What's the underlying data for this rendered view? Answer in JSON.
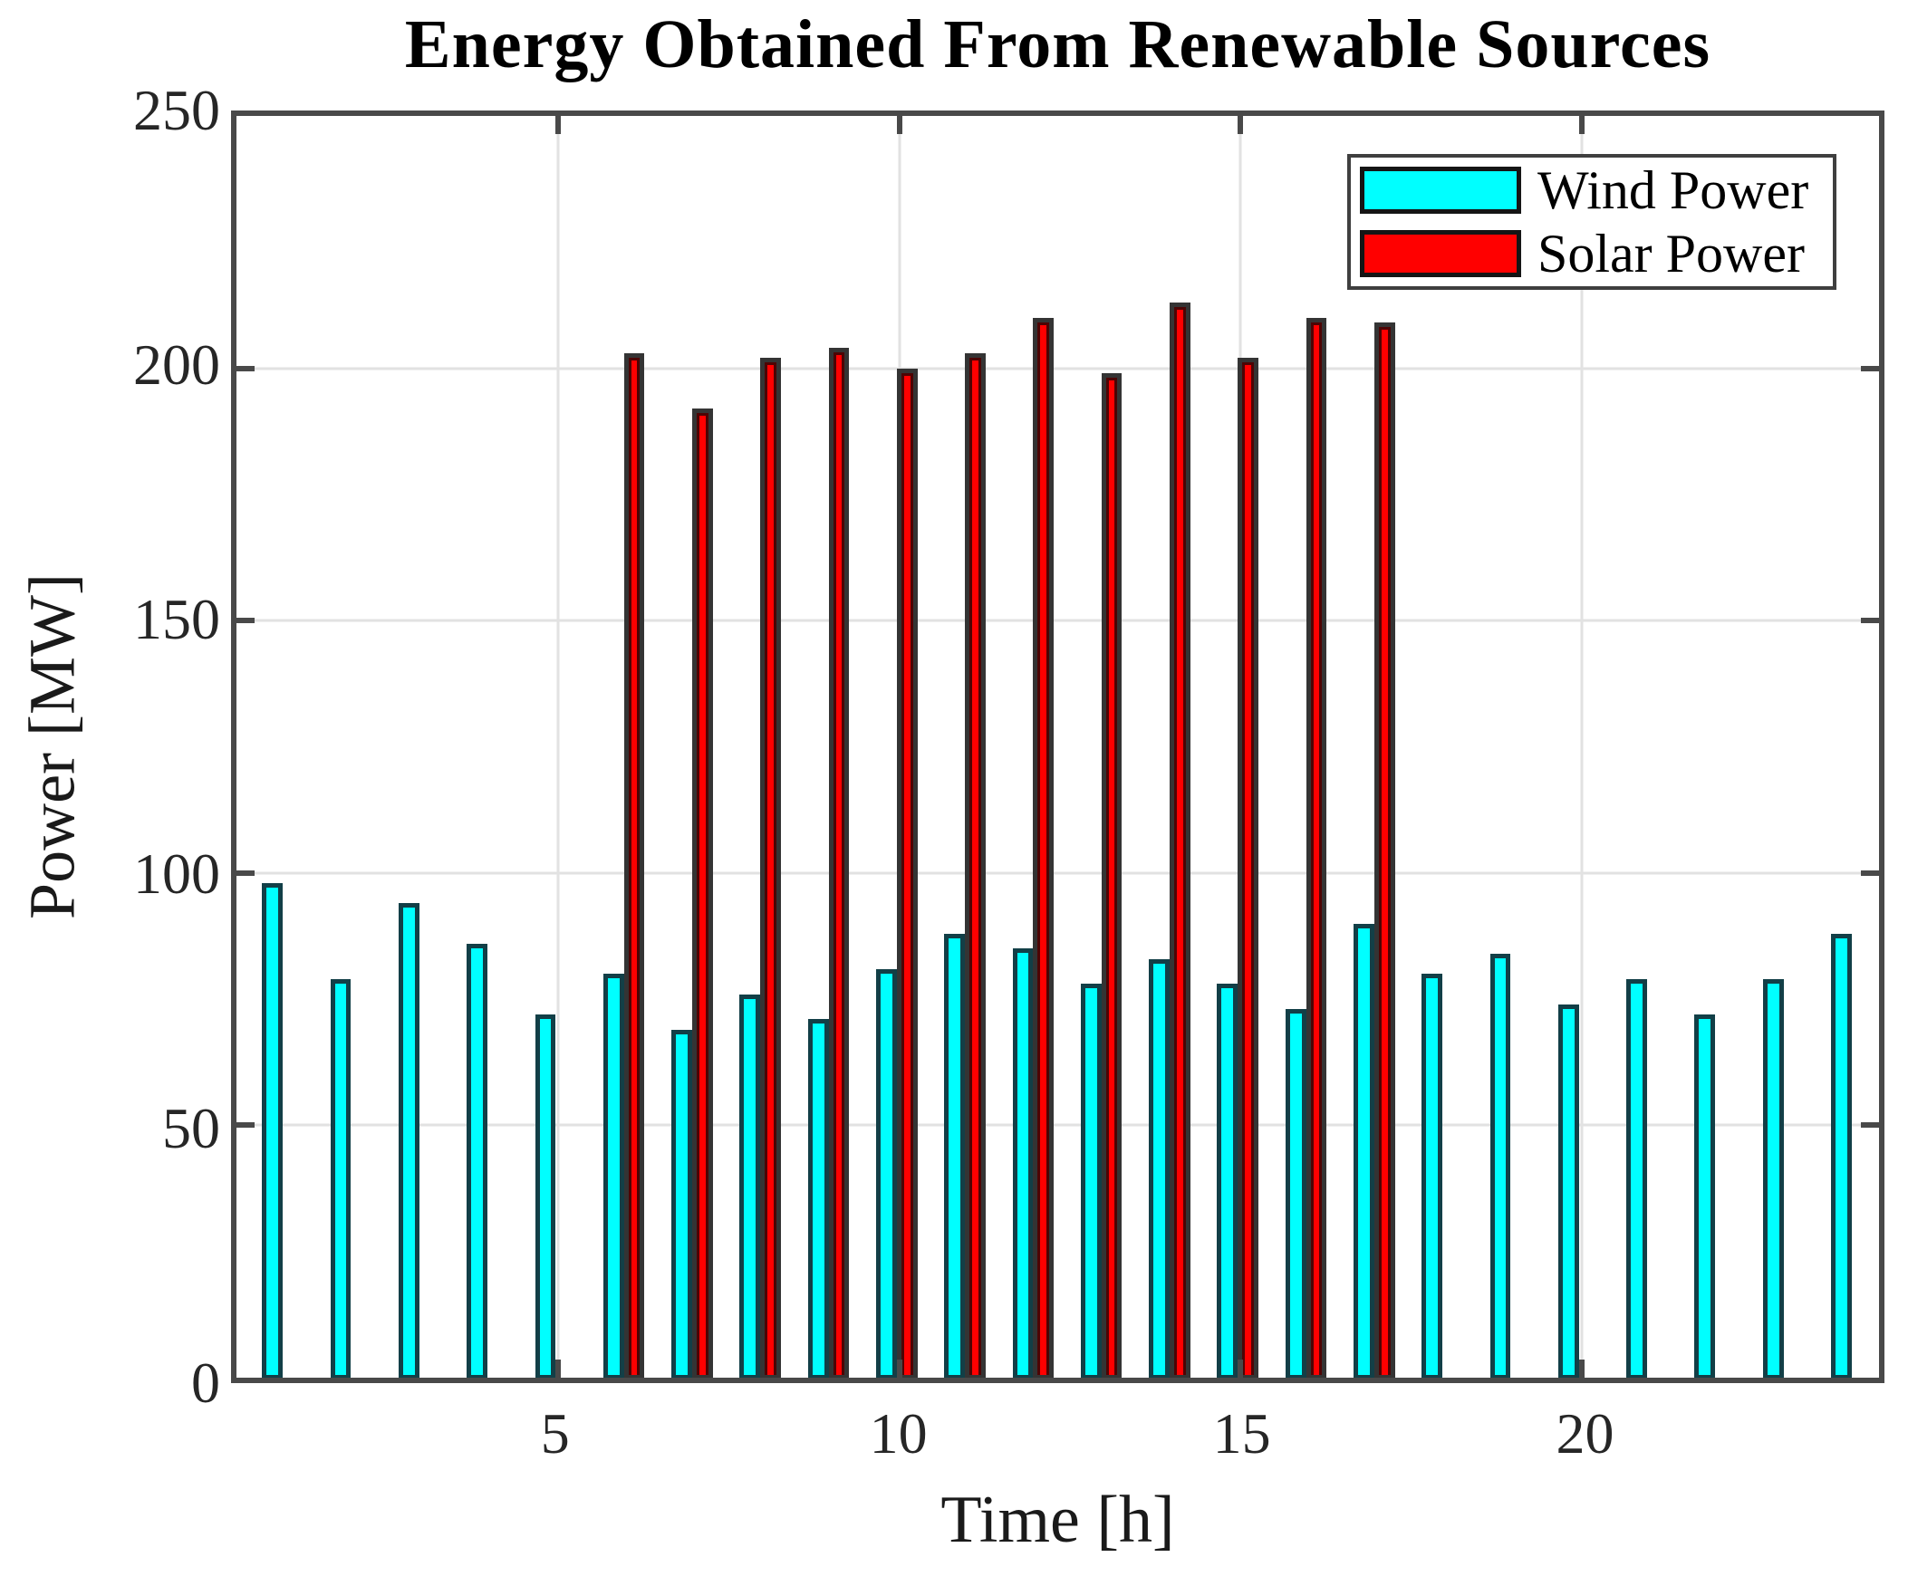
{
  "title": "Energy Obtained From Renewable Sources",
  "axes": {
    "ylabel": "Power [MW]",
    "xlabel": "Time [h]",
    "ytick_labels": [
      "0",
      "50",
      "100",
      "150",
      "200",
      "250"
    ],
    "xtick_labels": [
      "5",
      "10",
      "15",
      "20"
    ]
  },
  "legend": {
    "items": [
      {
        "label": "Wind Power",
        "swatch_color": "#00ffff"
      },
      {
        "label": "Solar Power",
        "swatch_color": "#ff0000"
      }
    ],
    "position": "top-right"
  },
  "colors": {
    "wind": "#00ffff",
    "solar": "#ff0000",
    "axis": "#494949",
    "grid": "#e2e2e2"
  },
  "chart_data": {
    "type": "bar",
    "title": "Energy Obtained From Renewable Sources",
    "xlabel": "Time [h]",
    "ylabel": "Power [MW]",
    "x": [
      1,
      2,
      3,
      4,
      5,
      6,
      7,
      8,
      9,
      10,
      11,
      12,
      13,
      14,
      15,
      16,
      17,
      18,
      19,
      20,
      21,
      22,
      23,
      24
    ],
    "series": [
      {
        "name": "Wind Power",
        "color": "#00ffff",
        "values": [
          98,
          79,
          94,
          86,
          72,
          80,
          69,
          76,
          71,
          81,
          88,
          85,
          78,
          83,
          78,
          73,
          90,
          80,
          84,
          74,
          79,
          72,
          79,
          88
        ]
      },
      {
        "name": "Solar Power",
        "color": "#ff0000",
        "values": [
          null,
          null,
          null,
          null,
          null,
          203,
          192,
          202,
          204,
          200,
          203,
          210,
          199,
          213,
          202,
          210,
          209,
          null,
          null,
          null,
          null,
          null,
          null,
          null
        ]
      }
    ],
    "ylim": [
      0,
      250
    ],
    "xlim": [
      0.28,
      24.36
    ],
    "yticks": [
      0,
      50,
      100,
      150,
      200,
      250
    ],
    "xticks": [
      5,
      10,
      15,
      20
    ],
    "grid": true,
    "legend_position": "top-right"
  }
}
